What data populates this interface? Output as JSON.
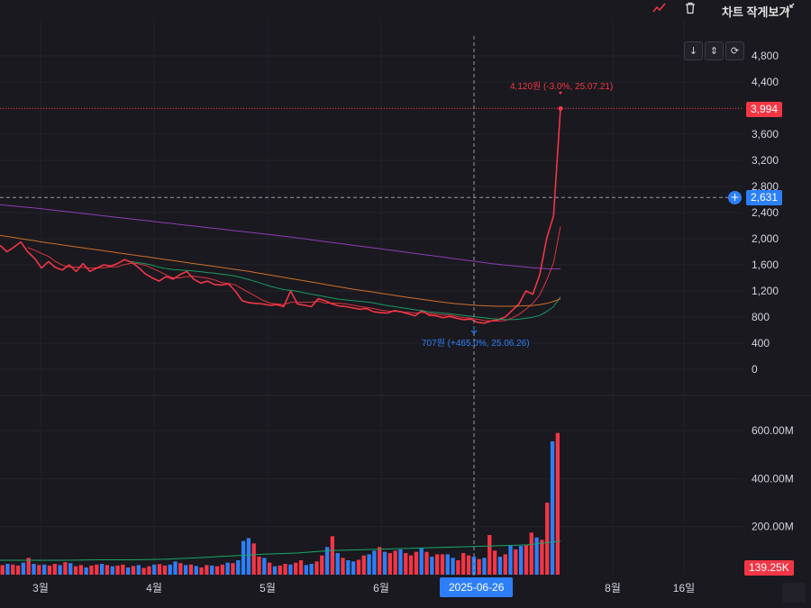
{
  "toolbar": {
    "title": "차트 작게보기",
    "trend_icon": "trend-line-icon",
    "trash_icon": "trash-icon",
    "collapse_icon": "collapse-arrows-icon"
  },
  "controls": {
    "download_icon": "download-icon",
    "fit_icon": "fit-vertical-icon",
    "reset_icon": "reset-icon"
  },
  "colors": {
    "background": "#1a191f",
    "up": "#f23645",
    "down": "#2d7ff9",
    "ma5": "#f23645",
    "ma20": "#19a86a",
    "ma60": "#e07a2e",
    "ma120": "#9b3fc6",
    "volume_ma": "#19a86a"
  },
  "price_badges": {
    "last": "3,994",
    "crosshair": "2,631",
    "volume": "139.25K"
  },
  "crosshair_date": "2025-06-26",
  "annotations": {
    "high": "4,120원 (-3.0%, 25.07.21)",
    "low": "707원 (+465.0%, 25.06.26)"
  },
  "chart_data": {
    "type": "line",
    "x_ticks": [
      "3월",
      "4월",
      "5월",
      "6월",
      "8월",
      "16일"
    ],
    "price_axis": {
      "ticks": [
        "4,800",
        "4,400",
        "4,000",
        "3,600",
        "3,200",
        "2,800",
        "2,400",
        "2,000",
        "1,600",
        "1,200",
        "800",
        "400",
        "0"
      ],
      "ylim": [
        0,
        4800
      ]
    },
    "volume_axis": {
      "ticks": [
        "600.00M",
        "400.00M",
        "200.00M"
      ],
      "ylim": [
        0,
        700
      ]
    },
    "series": [
      {
        "key": "close",
        "values": [
          1900,
          1800,
          1870,
          1950,
          1800,
          1700,
          1550,
          1650,
          1560,
          1520,
          1600,
          1500,
          1620,
          1500,
          1550,
          1600,
          1580,
          1620,
          1680,
          1640,
          1560,
          1460,
          1400,
          1350,
          1420,
          1380,
          1450,
          1500,
          1380,
          1320,
          1350,
          1300,
          1290,
          1310,
          1200,
          1050,
          1020,
          1010,
          1000,
          980,
          990,
          960,
          1200,
          1000,
          980,
          960,
          1080,
          1050,
          1000,
          970,
          960,
          940,
          920,
          930,
          880,
          870,
          860,
          900,
          880,
          850,
          820,
          900,
          830,
          820,
          790,
          810,
          780,
          760,
          770,
          720,
          707,
          740,
          760,
          800,
          900,
          1000,
          1200,
          1150,
          1450,
          2000,
          2350,
          3994
        ]
      },
      {
        "key": "ma5",
        "values": [
          null,
          null,
          null,
          null,
          1864,
          1824,
          1774,
          1730,
          1652,
          1596,
          1566,
          1566,
          1560,
          1548,
          1554,
          1554,
          1570,
          1570,
          1606,
          1624,
          1616,
          1592,
          1548,
          1500,
          1446,
          1402,
          1400,
          1420,
          1426,
          1410,
          1394,
          1370,
          1330,
          1314,
          1292,
          1232,
          1174,
          1116,
          1056,
          1014,
          1002,
          990,
          1026,
          1026,
          1026,
          1028,
          1044,
          1014,
          1014,
          1012,
          1002,
          984,
          960,
          948,
          930,
          908,
          892,
          888,
          878,
          872,
          862,
          870,
          856,
          844,
          832,
          830,
          808,
          792,
          782,
          766,
          747,
          739,
          739,
          745,
          785,
          840,
          920,
          1010,
          1140,
          1360,
          1630,
          2189
        ]
      },
      {
        "key": "ma20",
        "values": [
          null,
          null,
          null,
          null,
          null,
          null,
          null,
          null,
          null,
          null,
          null,
          null,
          null,
          null,
          null,
          null,
          null,
          null,
          null,
          1650,
          1633,
          1616,
          1593,
          1563,
          1544,
          1527,
          1521,
          1513,
          1505,
          1495,
          1482,
          1472,
          1456,
          1446,
          1428,
          1400,
          1372,
          1342,
          1308,
          1275,
          1246,
          1221,
          1211,
          1193,
          1171,
          1150,
          1132,
          1110,
          1091,
          1074,
          1062,
          1053,
          1041,
          1032,
          1016,
          994,
          976,
          960,
          944,
          928,
          911,
          898,
          880,
          871,
          861,
          853,
          838,
          824,
          812,
          800,
          787,
          777,
          769,
          762,
          760,
          767,
          784,
          797,
          825,
          883,
          958,
          1110
        ]
      },
      {
        "key": "ma60",
        "values": [
          2050,
          2035,
          2020,
          2000,
          1985,
          1970,
          1950,
          1935,
          1920,
          1905,
          1890,
          1875,
          1860,
          1845,
          1830,
          1815,
          1800,
          1785,
          1770,
          1755,
          1740,
          1725,
          1710,
          1695,
          1680,
          1665,
          1650,
          1635,
          1620,
          1605,
          1590,
          1575,
          1560,
          1545,
          1530,
          1515,
          1500,
          1480,
          1462,
          1444,
          1426,
          1408,
          1390,
          1372,
          1354,
          1336,
          1318,
          1300,
          1282,
          1264,
          1246,
          1228,
          1212,
          1196,
          1180,
          1164,
          1148,
          1132,
          1116,
          1100,
          1085,
          1070,
          1056,
          1042,
          1028,
          1015,
          1004,
          994,
          986,
          978,
          972,
          968,
          966,
          966,
          966,
          968,
          972,
          978,
          990,
          1010,
          1040,
          1080
        ]
      },
      {
        "key": "ma120",
        "values": [
          2520,
          2510,
          2500,
          2490,
          2480,
          2470,
          2458,
          2446,
          2434,
          2422,
          2410,
          2398,
          2386,
          2374,
          2362,
          2350,
          2338,
          2326,
          2314,
          2302,
          2290,
          2278,
          2266,
          2254,
          2242,
          2230,
          2218,
          2206,
          2194,
          2182,
          2170,
          2158,
          2146,
          2134,
          2122,
          2110,
          2098,
          2086,
          2074,
          2062,
          2050,
          2038,
          2026,
          2012,
          1998,
          1984,
          1970,
          1956,
          1942,
          1928,
          1914,
          1900,
          1886,
          1872,
          1858,
          1844,
          1830,
          1816,
          1802,
          1788,
          1774,
          1760,
          1746,
          1732,
          1718,
          1704,
          1690,
          1676,
          1662,
          1648,
          1634,
          1620,
          1608,
          1596,
          1586,
          1576,
          1566,
          1556,
          1548,
          1540,
          1536,
          1540
        ]
      }
    ],
    "volume": {
      "values": [
        40,
        45,
        42,
        38,
        50,
        70,
        45,
        40,
        42,
        38,
        45,
        40,
        52,
        48,
        35,
        40,
        30,
        38,
        42,
        45,
        40,
        35,
        38,
        42,
        30,
        36,
        40,
        28,
        35,
        42,
        44,
        38,
        42,
        55,
        48,
        40,
        42,
        36,
        30,
        40,
        38,
        35,
        42,
        50,
        48,
        60,
        140,
        152,
        130,
        75,
        70,
        50,
        35,
        38,
        45,
        42,
        50,
        60,
        40,
        45,
        55,
        80,
        115,
        160,
        90,
        70,
        60,
        55,
        62,
        80,
        85,
        100,
        115,
        95,
        90,
        100,
        105,
        90,
        80,
        95,
        110,
        95,
        75,
        85,
        85,
        85,
        70,
        60,
        90,
        80,
        75,
        65,
        70,
        165,
        100,
        75,
        85,
        120,
        105,
        120,
        125,
        175,
        155,
        145,
        300,
        555,
        590
      ],
      "up": [
        1,
        0,
        1,
        1,
        0,
        1,
        0,
        1,
        0,
        1,
        1,
        0,
        1,
        0,
        1,
        1,
        0,
        1,
        1,
        0,
        1,
        0,
        1,
        1,
        0,
        1,
        0,
        1,
        1,
        0,
        1,
        1,
        0,
        0,
        1,
        0,
        1,
        0,
        1,
        1,
        0,
        1,
        1,
        0,
        1,
        0,
        0,
        0,
        1,
        1,
        0,
        1,
        0,
        1,
        1,
        0,
        1,
        1,
        0,
        0,
        1,
        1,
        0,
        1,
        0,
        1,
        0,
        0,
        1,
        1,
        0,
        0,
        1,
        0,
        1,
        1,
        0,
        1,
        1,
        1,
        0,
        1,
        0,
        1,
        1,
        0,
        0,
        1,
        1,
        1,
        0,
        1,
        0,
        1,
        1,
        0,
        1,
        0,
        1,
        0,
        1,
        1,
        0,
        1,
        1,
        0,
        1
      ],
      "ma": [
        60,
        60,
        60,
        62,
        62,
        64,
        70,
        78,
        85,
        90,
        100,
        104,
        108,
        112,
        116,
        120,
        124,
        140
      ]
    },
    "crosshair": {
      "date": "2025-06-26",
      "price": 2631
    },
    "last_price": 3994,
    "high": {
      "value": 4120,
      "label": "4,120원 (-3.0%, 25.07.21)"
    },
    "low": {
      "value": 707,
      "label": "707원 (+465.0%, 25.06.26)"
    },
    "grid": true
  }
}
